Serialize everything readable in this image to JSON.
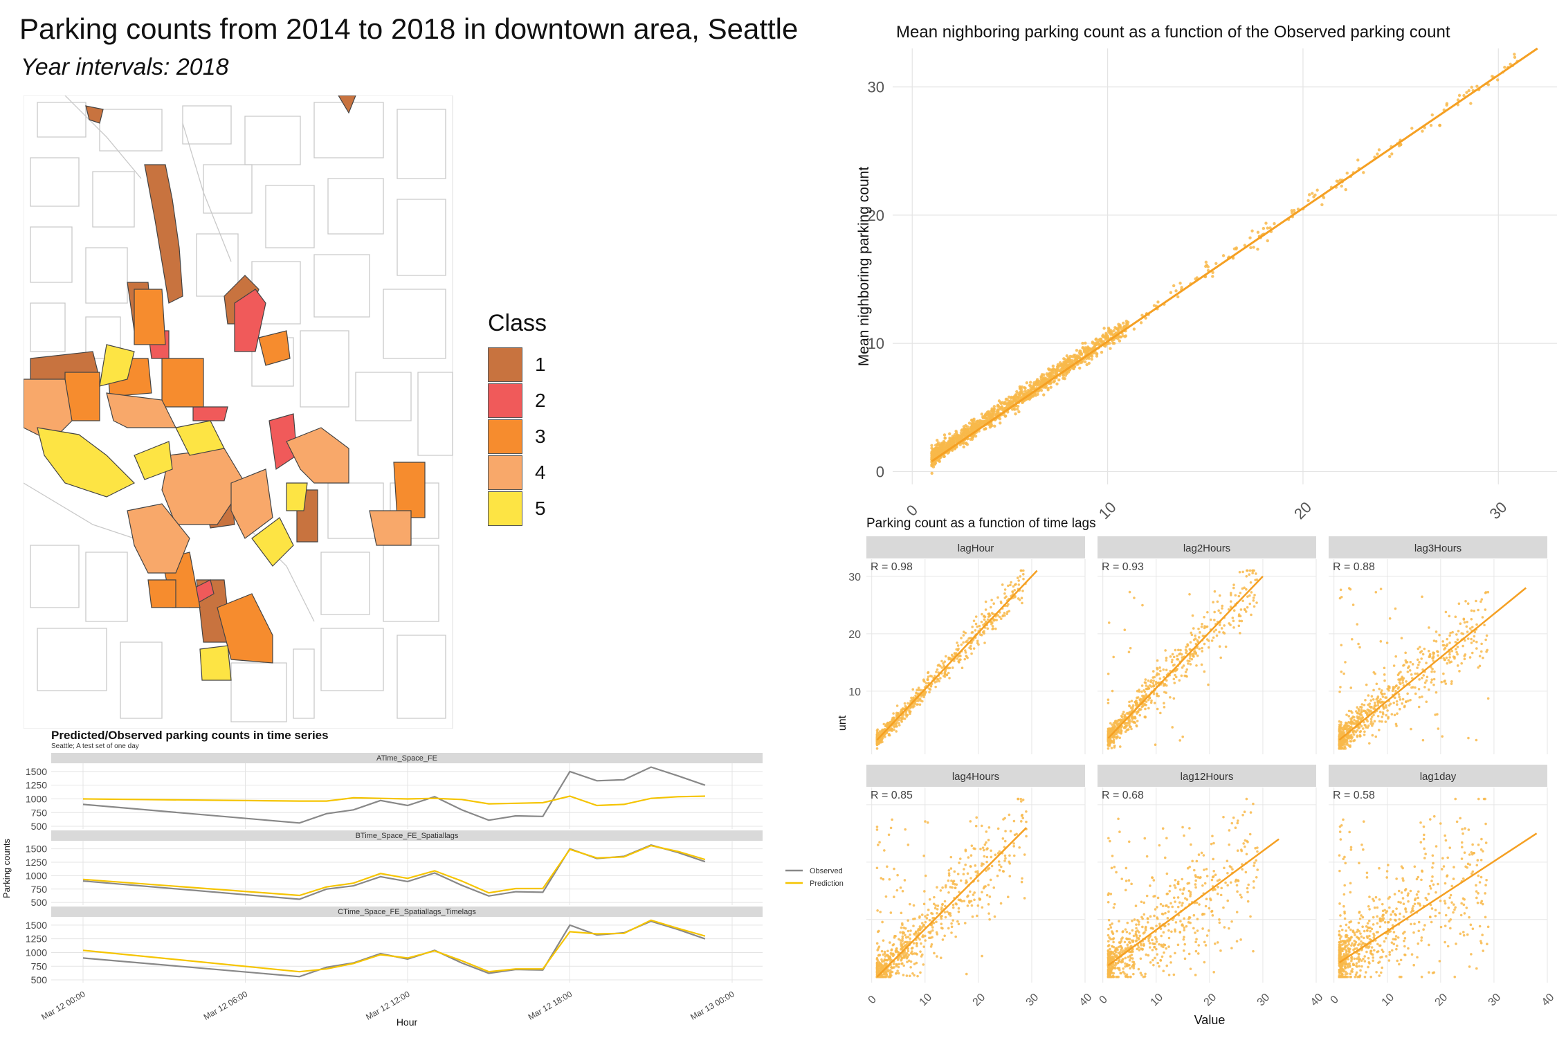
{
  "map": {
    "title": "Parking counts from 2014 to 2018 in downtown area, Seattle",
    "subtitle": "Year intervals: 2018",
    "legend_title": "Class",
    "classes": [
      {
        "label": "1",
        "color": "#c8733f"
      },
      {
        "label": "2",
        "color": "#f05a5a"
      },
      {
        "label": "3",
        "color": "#f68c2e"
      },
      {
        "label": "4",
        "color": "#f8a86a"
      },
      {
        "label": "5",
        "color": "#fde444"
      }
    ]
  },
  "chart_data": [
    {
      "type": "scatter",
      "title": "Mean nighboring parking count as a function of the Observed parking count",
      "xlabel": "",
      "ylabel": "Mean nighboring parking count",
      "xlim": [
        -1,
        33
      ],
      "ylim": [
        -1,
        33
      ],
      "xticks": [
        0,
        10,
        20,
        30
      ],
      "yticks": [
        0,
        10,
        20,
        30
      ],
      "point_color": "#f8b84a",
      "line_color": "#f5a023",
      "fit_line": [
        [
          1,
          0.8
        ],
        [
          32,
          33
        ]
      ],
      "points_sample": [
        [
          2,
          2
        ],
        [
          3,
          2.8
        ],
        [
          4,
          4.1
        ],
        [
          5,
          5
        ],
        [
          6,
          5.8
        ],
        [
          7,
          6.9
        ],
        [
          8,
          8.2
        ],
        [
          9,
          9
        ],
        [
          10,
          10
        ],
        [
          12,
          12.3
        ],
        [
          15,
          15.2
        ],
        [
          18,
          18.5
        ],
        [
          20,
          20.5
        ],
        [
          22,
          22.6
        ],
        [
          25,
          25.5
        ],
        [
          27,
          27
        ],
        [
          29,
          29.8
        ],
        [
          30.5,
          31.5
        ]
      ]
    },
    {
      "type": "scatter",
      "title": "Parking count as a function of time lags",
      "xlabel": "Value",
      "ylabel": "unt",
      "xlim": [
        -1,
        40
      ],
      "ylim": [
        -1,
        33
      ],
      "xticks": [
        0,
        10,
        20,
        30,
        40
      ],
      "yticks": [
        10,
        20,
        30
      ],
      "point_color": "#f8b84a",
      "line_color": "#f5a023",
      "panels": [
        {
          "name": "lagHour",
          "r_label": "R = 0.98",
          "fit_line": [
            [
              1,
              1.5
            ],
            [
              31,
              31
            ]
          ]
        },
        {
          "name": "lag2Hours",
          "r_label": "R = 0.93",
          "fit_line": [
            [
              1,
              1.8
            ],
            [
              30,
              30
            ]
          ]
        },
        {
          "name": "lag3Hours",
          "r_label": "R = 0.88",
          "fit_line": [
            [
              1,
              1.5
            ],
            [
              36,
              28
            ]
          ]
        },
        {
          "name": "lag4Hours",
          "r_label": "R = 0.85",
          "fit_line": [
            [
              1,
              0
            ],
            [
              29,
              26
            ]
          ]
        },
        {
          "name": "lag12Hours",
          "r_label": "R = 0.68",
          "fit_line": [
            [
              1,
              2
            ],
            [
              33,
              24
            ]
          ]
        },
        {
          "name": "lag1day",
          "r_label": "R = 0.58",
          "fit_line": [
            [
              1,
              2.5
            ],
            [
              38,
              25
            ]
          ]
        }
      ]
    },
    {
      "type": "line",
      "title": "Predicted/Observed parking counts in time series",
      "subtitle": "Seattle; A test set of one day",
      "xlabel": "Hour",
      "ylabel": "Parking counts",
      "x_tick_labels": [
        "Mar 12 00:00",
        "Mar 12 06:00",
        "Mar 12 12:00",
        "Mar 12 18:00",
        "Mar 13 00:00"
      ],
      "x_tick_hours": [
        0,
        6,
        12,
        18,
        24
      ],
      "yticks": [
        500,
        750,
        1000,
        1250,
        1500
      ],
      "ylim": [
        450,
        1650
      ],
      "legend": [
        {
          "name": "Observed",
          "color": "#888888"
        },
        {
          "name": "Prediction",
          "color": "#f5c400"
        }
      ],
      "hours": [
        0,
        8,
        9,
        10,
        11,
        12,
        13,
        14,
        15,
        16,
        17,
        18,
        19,
        20,
        21,
        22,
        23
      ],
      "panels": [
        {
          "name": "ATime_Space_FE",
          "observed": [
            900,
            560,
            730,
            800,
            970,
            880,
            1040,
            800,
            610,
            690,
            680,
            1500,
            1330,
            1350,
            1580,
            1420,
            1250
          ],
          "prediction": [
            1000,
            960,
            960,
            1020,
            1010,
            1000,
            1010,
            990,
            910,
            920,
            930,
            1050,
            880,
            900,
            1010,
            1040,
            1050
          ]
        },
        {
          "name": "BTime_Space_FE_Spatiallags",
          "observed": [
            900,
            560,
            750,
            810,
            980,
            890,
            1050,
            820,
            620,
            700,
            690,
            1500,
            1320,
            1360,
            1570,
            1430,
            1260
          ],
          "prediction": [
            930,
            630,
            790,
            860,
            1040,
            950,
            1090,
            900,
            680,
            760,
            760,
            1490,
            1330,
            1350,
            1560,
            1450,
            1300
          ]
        },
        {
          "name": "CTime_Space_FE_Spatiallags_Timelags",
          "observed": [
            900,
            560,
            730,
            810,
            980,
            880,
            1040,
            810,
            620,
            690,
            680,
            1500,
            1320,
            1360,
            1570,
            1420,
            1250
          ],
          "prediction": [
            1040,
            650,
            700,
            800,
            960,
            900,
            1030,
            850,
            650,
            700,
            700,
            1380,
            1340,
            1350,
            1590,
            1440,
            1300
          ]
        }
      ]
    }
  ]
}
